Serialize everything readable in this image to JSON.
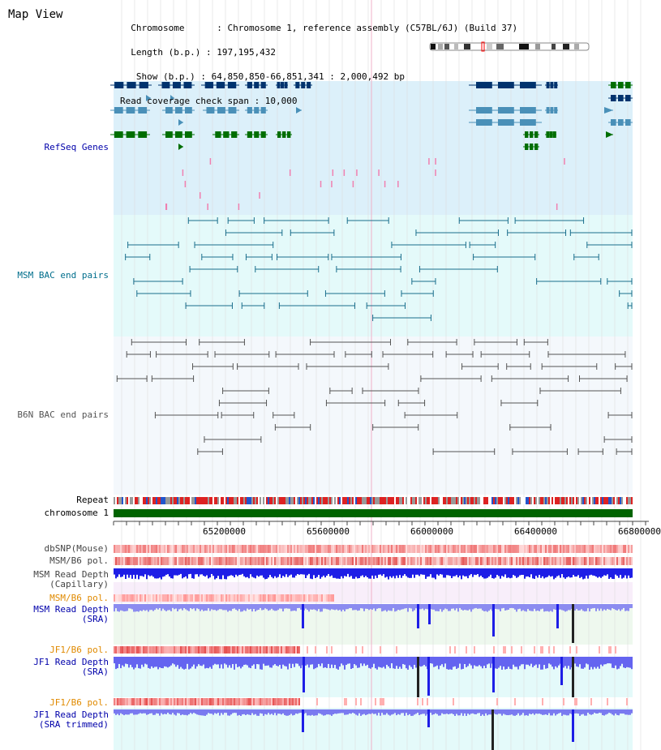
{
  "header": {
    "title": "Map View",
    "info_lines": [
      "  Chromosome      : Chromosome 1, reference assembly (C57BL/6J) (Build 37)",
      "  Length (b.p.) : 197,195,432",
      "   Show (b.p.) : 64,850,850-66,851,341 : 2,000,492 bp",
      "Read coverage check span : 10,000"
    ]
  },
  "tracks": {
    "refseq": {
      "label": "RefSeq Genes",
      "color": "#0000aa"
    },
    "msm_bac": {
      "label": "MSM BAC end pairs",
      "color": "#006e8c"
    },
    "b6n_bac": {
      "label": "B6N BAC end pairs",
      "color": "#555555"
    },
    "repeat": {
      "label": "Repeat"
    },
    "chromosome": {
      "label": "chromosome 1"
    },
    "dbsnp": {
      "label": "dbSNP(Mouse)",
      "color": "#444444"
    },
    "msm_b6_pol": {
      "label": "MSM/B6 pol.",
      "color": "#444444"
    },
    "msm_depth_cap": {
      "label": "MSM Read Depth\n(Capillary)",
      "color": "#444444"
    },
    "msm_b6_pol2": {
      "label": "MSM/B6 pol.",
      "color": "#e08a00"
    },
    "msm_depth_sra": {
      "label": "MSM Read Depth\n(SRA)",
      "color": "#0000aa"
    },
    "jf1_b6_pol": {
      "label": "JF1/B6 pol.",
      "color": "#e08a00"
    },
    "jf1_depth_sra": {
      "label": "JF1 Read Depth\n(SRA)",
      "color": "#0000aa"
    },
    "jf1_b6_pol2": {
      "label": "JF1/B6 pol.",
      "color": "#e08a00"
    },
    "jf1_depth_trim": {
      "label": "JF1 Read Depth\n(SRA trimmed)",
      "color": "#0000aa"
    }
  },
  "axis": {
    "ticks": [
      "65200000",
      "65600000",
      "66000000",
      "66400000",
      "66800000"
    ]
  },
  "colors": {
    "refseq_bg": "#dcf0fa",
    "msm_bac_bg": "#e4fafa",
    "b6n_bg": "#f4f8fc",
    "chrom_green": "#006400",
    "gene_dark": "#00336e",
    "gene_light": "#4a90b8",
    "gene_green": "#006e00",
    "depth_blue": "#1e1ee6",
    "depth_light": "#8c8cf0"
  }
}
